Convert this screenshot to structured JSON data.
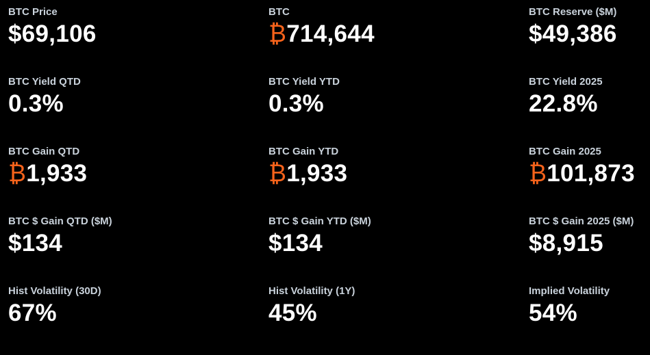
{
  "accent_color": "#f7631b",
  "metrics": [
    {
      "label": "BTC Price",
      "prefix": "$",
      "value": "69,106",
      "btc": false
    },
    {
      "label": "BTC",
      "prefix": "₿",
      "value": "714,644",
      "btc": true
    },
    {
      "label": "BTC Reserve ($M)",
      "prefix": "$",
      "value": "49,386",
      "btc": false
    },
    {
      "label": "BTC Yield QTD",
      "prefix": "",
      "value": "0.3%",
      "btc": false
    },
    {
      "label": "BTC Yield YTD",
      "prefix": "",
      "value": "0.3%",
      "btc": false
    },
    {
      "label": "BTC Yield 2025",
      "prefix": "",
      "value": "22.8%",
      "btc": false
    },
    {
      "label": "BTC Gain QTD",
      "prefix": "₿",
      "value": "1,933",
      "btc": true
    },
    {
      "label": "BTC Gain YTD",
      "prefix": "₿",
      "value": "1,933",
      "btc": true
    },
    {
      "label": "BTC Gain 2025",
      "prefix": "₿",
      "value": "101,873",
      "btc": true
    },
    {
      "label": "BTC $ Gain QTD ($M)",
      "prefix": "$",
      "value": "134",
      "btc": false
    },
    {
      "label": "BTC $ Gain YTD ($M)",
      "prefix": "$",
      "value": "134",
      "btc": false
    },
    {
      "label": "BTC $ Gain 2025 ($M)",
      "prefix": "$",
      "value": "8,915",
      "btc": false
    },
    {
      "label": "Hist Volatility (30D)",
      "prefix": "",
      "value": "67%",
      "btc": false
    },
    {
      "label": "Hist Volatility (1Y)",
      "prefix": "",
      "value": "45%",
      "btc": false
    },
    {
      "label": "Implied Volatility",
      "prefix": "",
      "value": "54%",
      "btc": false
    }
  ]
}
